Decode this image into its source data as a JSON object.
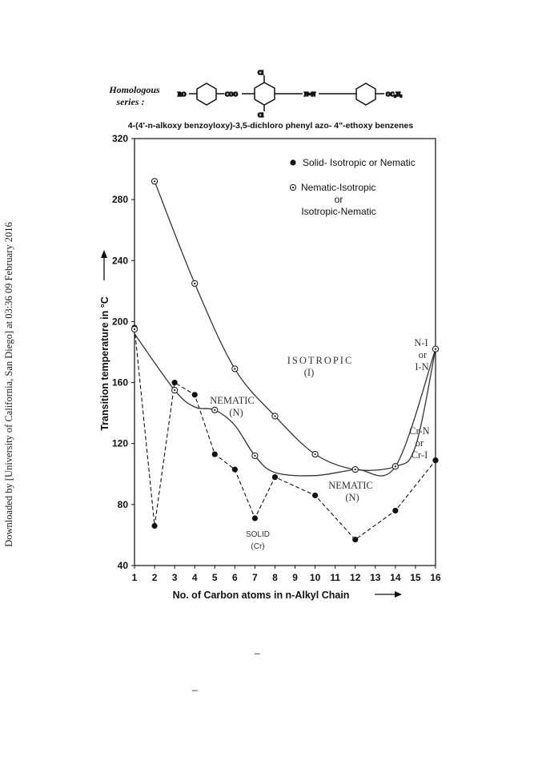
{
  "watermark": "Downloaded by [University of California, San Diego] at 03:36 09 February 2016",
  "header": {
    "series_title_line1": "Homologous",
    "series_title_line2": "series :",
    "subtitle": "4-(4'-n-alkoxy benzoyloxy)-3,5-dichloro phenyl azo- 4\"-ethoxy  benzenes",
    "structure": {
      "ro": "RO",
      "coo": "COO",
      "cl_top": "Cl",
      "cl_bottom": "Cl",
      "azo": "N=N",
      "ethoxy": "OC₂H₅"
    }
  },
  "stray_marks": [
    "_",
    "_"
  ],
  "chart_data": {
    "type": "line",
    "title": "",
    "xlabel": "No. of Carbon atoms in n-Alkyl Chain",
    "ylabel": "Transition temperature in °C",
    "xlim": [
      1,
      16
    ],
    "ylim": [
      40,
      320
    ],
    "x_ticks": [
      1,
      2,
      3,
      4,
      5,
      6,
      7,
      8,
      9,
      10,
      11,
      12,
      13,
      14,
      15,
      16
    ],
    "y_ticks": [
      40,
      80,
      120,
      160,
      200,
      240,
      280,
      320
    ],
    "grid": false,
    "legend_position": "top-right",
    "series": [
      {
        "name": "Solid- Isotropic or Nematic",
        "marker": "filled-circle",
        "line_style": "dashed",
        "points": [
          [
            1,
            196
          ],
          [
            2,
            66
          ],
          [
            3,
            160
          ],
          [
            4,
            152
          ],
          [
            5,
            113
          ],
          [
            6,
            103
          ],
          [
            7,
            71
          ],
          [
            8,
            98
          ],
          [
            10,
            86
          ],
          [
            12,
            57
          ],
          [
            14,
            76
          ],
          [
            16,
            109
          ]
        ]
      },
      {
        "name": "Nematic-Isotropic or Isotropic-Nematic",
        "legend_lines": [
          "Nematic-Isotropic",
          "or",
          "Isotropic-Nematic"
        ],
        "marker": "open-dot-circle",
        "line_style": "solid",
        "points": [
          [
            1,
            195
          ],
          [
            2,
            292
          ],
          [
            3,
            155
          ],
          [
            4,
            225
          ],
          [
            5,
            142
          ],
          [
            6,
            169
          ],
          [
            7,
            112
          ],
          [
            8,
            138
          ],
          [
            10,
            113
          ],
          [
            12,
            103
          ],
          [
            14,
            105
          ],
          [
            16,
            182
          ]
        ]
      }
    ],
    "curves": {
      "isotropic_boundary": [
        [
          2,
          292
        ],
        [
          4,
          225
        ],
        [
          6,
          169
        ],
        [
          8,
          138
        ],
        [
          10,
          113
        ],
        [
          12,
          103
        ],
        [
          14,
          105
        ],
        [
          15,
          118
        ],
        [
          16,
          182
        ]
      ],
      "nematic_boundary": [
        [
          1,
          192
        ],
        [
          3,
          155
        ],
        [
          4,
          144
        ],
        [
          5,
          142
        ],
        [
          6,
          132
        ],
        [
          7,
          112
        ],
        [
          8,
          101
        ],
        [
          10,
          99
        ],
        [
          12,
          103
        ],
        [
          14,
          105
        ],
        [
          16,
          182
        ]
      ]
    },
    "annotations": {
      "isotropic": [
        "ISOTROPIC",
        "(I)"
      ],
      "nematic_left": [
        "NEMATIC",
        "(N)"
      ],
      "nematic_right": [
        "NEMATIC",
        "(N)"
      ],
      "solid": [
        "SOLID",
        "(Cr)"
      ],
      "ni": [
        "N-I",
        "or",
        "I-N"
      ],
      "crn": [
        "Cr-N",
        "or",
        "Cr-I"
      ]
    }
  }
}
